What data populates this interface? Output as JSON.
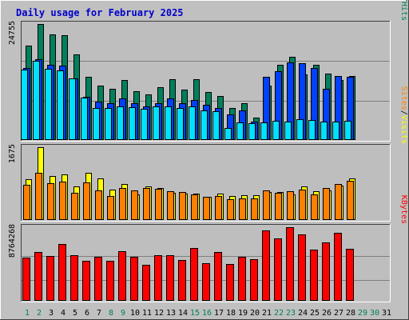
{
  "title": "Daily usage for February 2025",
  "colors": {
    "bg": "#C0C0C0",
    "plot_bg": "#BEBEBE",
    "grid": "#7F7F7F",
    "border_light": "#FFFFFF",
    "border_dark": "#404040",
    "title": "#0000CC",
    "axis_text": "#000000",
    "hits": "#00805C",
    "files": "#0040FF",
    "pages": "#00E0FF",
    "visits": "#FFFF00",
    "sites": "#FF8000",
    "kbytes": "#FF0000",
    "day_weekday": "#000000",
    "day_weekend": "#00805C"
  },
  "chart_data": [
    {
      "type": "bar",
      "panel": "hits-files-pages",
      "max_label": "24755",
      "ylim": [
        0,
        24755
      ],
      "categories": [
        "1",
        "2",
        "3",
        "4",
        "5",
        "6",
        "7",
        "8",
        "9",
        "10",
        "11",
        "12",
        "13",
        "14",
        "15",
        "16",
        "17",
        "18",
        "19",
        "20",
        "21",
        "22",
        "23",
        "24",
        "25",
        "26",
        "27",
        "28",
        "29",
        "30",
        "31"
      ],
      "series": [
        {
          "name": "Hits",
          "color_key": "hits",
          "values": [
            20100,
            24755,
            22600,
            22400,
            18300,
            13500,
            11600,
            10900,
            12800,
            10400,
            9800,
            11200,
            12900,
            10700,
            12900,
            10300,
            9400,
            6900,
            7800,
            4800,
            11600,
            16100,
            17800,
            14000,
            16100,
            14100,
            12800,
            13600,
            null,
            null,
            null
          ]
        },
        {
          "name": "Files",
          "color_key": "files",
          "values": [
            15400,
            17200,
            16100,
            15900,
            13200,
            9200,
            8200,
            7900,
            8900,
            7800,
            7200,
            7800,
            8900,
            7800,
            8500,
            7500,
            6900,
            5500,
            6400,
            4000,
            13500,
            14600,
            16600,
            16400,
            15400,
            10900,
            13700,
            13500,
            null,
            null,
            null
          ]
        },
        {
          "name": "Pages",
          "color_key": "pages",
          "values": [
            15100,
            16900,
            15200,
            14800,
            13200,
            9000,
            6800,
            6800,
            7200,
            7000,
            6700,
            7100,
            7200,
            6900,
            7100,
            6400,
            6200,
            2600,
            3800,
            3600,
            3800,
            4100,
            4000,
            4400,
            4300,
            4000,
            3900,
            4100,
            null,
            null,
            null
          ]
        }
      ]
    },
    {
      "type": "bar",
      "panel": "visits-sites",
      "max_label": "1675",
      "ylim": [
        0,
        1675
      ],
      "categories": [
        "1",
        "2",
        "3",
        "4",
        "5",
        "6",
        "7",
        "8",
        "9",
        "10",
        "11",
        "12",
        "13",
        "14",
        "15",
        "16",
        "17",
        "18",
        "19",
        "20",
        "21",
        "22",
        "23",
        "24",
        "25",
        "26",
        "27",
        "28",
        "29",
        "30",
        "31"
      ],
      "series": [
        {
          "name": "Visits",
          "color_key": "visits",
          "values": [
            940,
            1675,
            1020,
            1050,
            780,
            1080,
            950,
            700,
            830,
            580,
            770,
            740,
            630,
            610,
            600,
            540,
            610,
            550,
            570,
            570,
            640,
            640,
            590,
            780,
            660,
            690,
            800,
            950,
            null,
            null,
            null
          ]
        },
        {
          "name": "Sites",
          "color_key": "sites",
          "values": [
            810,
            1090,
            850,
            880,
            620,
            860,
            690,
            550,
            730,
            680,
            730,
            710,
            670,
            640,
            590,
            530,
            560,
            480,
            500,
            490,
            690,
            620,
            670,
            700,
            580,
            730,
            820,
            900,
            null,
            null,
            null
          ]
        }
      ]
    },
    {
      "type": "bar",
      "panel": "kbytes",
      "max_label": "8764268",
      "ylim": [
        0,
        8764268
      ],
      "categories": [
        "1",
        "2",
        "3",
        "4",
        "5",
        "6",
        "7",
        "8",
        "9",
        "10",
        "11",
        "12",
        "13",
        "14",
        "15",
        "16",
        "17",
        "18",
        "19",
        "20",
        "21",
        "22",
        "23",
        "24",
        "25",
        "26",
        "27",
        "28",
        "29",
        "30",
        "31"
      ],
      "series": [
        {
          "name": "KBytes",
          "color_key": "kbytes",
          "values": [
            5100000,
            5800000,
            5300000,
            6800000,
            5400000,
            4800000,
            5200000,
            4800000,
            5900000,
            5200000,
            4300000,
            5400000,
            5400000,
            4900000,
            6300000,
            4500000,
            5800000,
            4400000,
            5200000,
            5000000,
            8400000,
            7400000,
            8764268,
            7900000,
            6100000,
            7000000,
            8100000,
            6200000,
            null,
            null,
            null
          ]
        }
      ]
    }
  ],
  "legends": {
    "top": [
      {
        "text": "Hits",
        "color_key": "hits"
      },
      {
        "text": "/",
        "color_key": "axis_text"
      },
      {
        "text": "Files",
        "color_key": "files"
      },
      {
        "text": "/",
        "color_key": "axis_text"
      },
      {
        "text": "Pages",
        "color_key": "pages"
      }
    ],
    "middle": [
      {
        "text": "Visits",
        "color_key": "visits"
      },
      {
        "text": "/",
        "color_key": "axis_text"
      },
      {
        "text": "Sites",
        "color_key": "sites"
      }
    ],
    "bottom": [
      {
        "text": "KBytes",
        "color_key": "kbytes"
      }
    ]
  },
  "weekend_days": [
    "1",
    "2",
    "8",
    "9",
    "15",
    "16",
    "22",
    "23",
    "29",
    "30"
  ]
}
